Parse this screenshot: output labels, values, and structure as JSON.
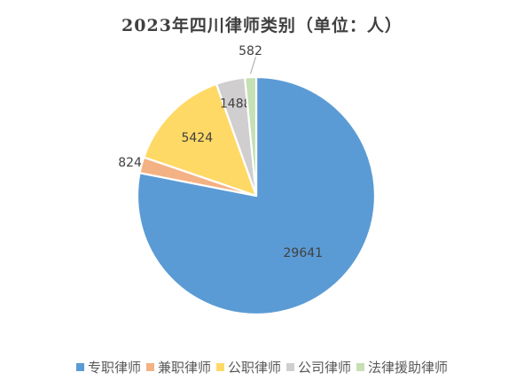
{
  "chart_data": {
    "type": "pie",
    "title": "2023年四川律师类别（单位：人）",
    "categories": [
      "专职律师",
      "兼职律师",
      "公职律师",
      "公司律师",
      "法律援助律师"
    ],
    "values": [
      29641,
      824,
      5424,
      1488,
      582
    ],
    "colors": [
      "#5B9BD5",
      "#F4B183",
      "#FFD966",
      "#D0CECE",
      "#C5E0B4"
    ],
    "legend_position": "bottom",
    "start_angle_deg": 0,
    "direction": "clockwise"
  }
}
